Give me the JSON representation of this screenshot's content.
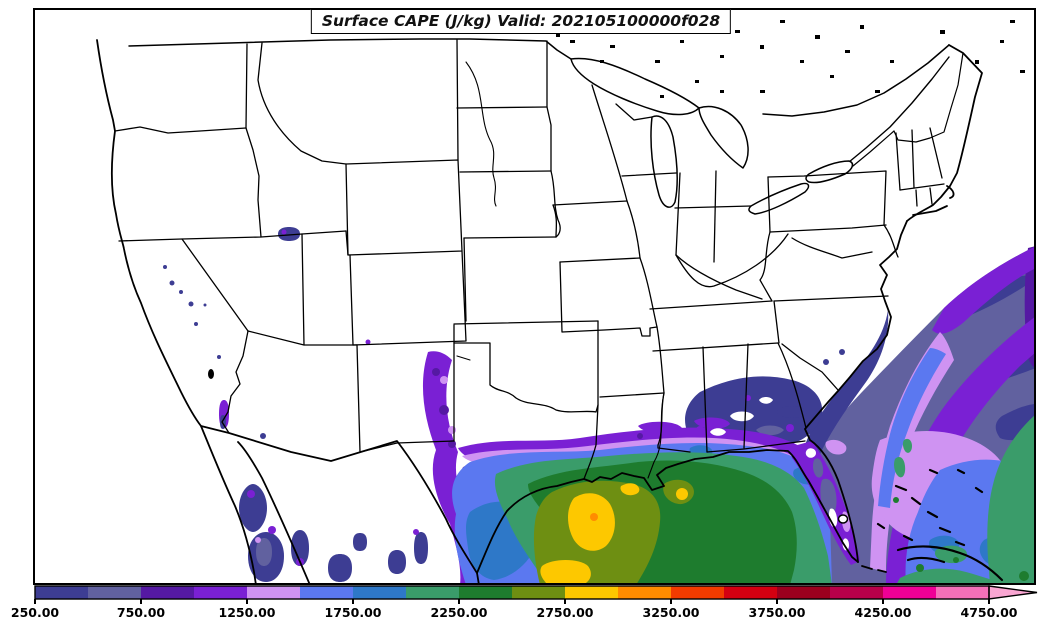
{
  "title": {
    "text": "Surface CAPE (J/kg) Valid: 202105100000f028"
  },
  "colorbar": {
    "min": 250,
    "max": 4750,
    "step": 250,
    "tick_labels": [
      "250.00",
      "750.00",
      "1250.00",
      "1750.00",
      "2250.00",
      "2750.00",
      "3250.00",
      "3750.00",
      "4250.00",
      "4750.00"
    ],
    "segment_colors": [
      "#3d3d93",
      "#61619f",
      "#5519a3",
      "#7a20d4",
      "#cf93f2",
      "#5b78f0",
      "#2e78c8",
      "#3a9c6a",
      "#1e7c2e",
      "#6e8f12",
      "#fdc800",
      "#ff8c00",
      "#f23b00",
      "#d40011",
      "#9b001e",
      "#b8004a",
      "#ef0096",
      "#f470b8"
    ],
    "arrow_color": "#f9a6d2",
    "outline_color": "#000000"
  },
  "chart_data": {
    "type": "heatmap",
    "title": "Surface CAPE (J/kg) Valid: 202105100000f028",
    "variable": "Surface CAPE",
    "units": "J/kg",
    "valid_time": "202105100000f028",
    "region": "Contiguous United States with state borders",
    "contour_levels": [
      250,
      500,
      750,
      1000,
      1250,
      1500,
      1750,
      2000,
      2250,
      2500,
      2750,
      3000,
      3250,
      3500,
      3750,
      4000,
      4250,
      4500,
      4750
    ],
    "palette": [
      "#3d3d93",
      "#61619f",
      "#5519a3",
      "#7a20d4",
      "#cf93f2",
      "#5b78f0",
      "#2e78c8",
      "#3a9c6a",
      "#1e7c2e",
      "#6e8f12",
      "#fdc800",
      "#ff8c00",
      "#f23b00",
      "#d40011",
      "#9b001e",
      "#b8004a",
      "#ef0096",
      "#f470b8"
    ],
    "legend_position": "bottom",
    "features": [
      {
        "area": "western Gulf of Mexico off Texas coast",
        "value_range": [
          2750,
          3250
        ],
        "note": "maximum CAPE cores (gold/orange)"
      },
      {
        "area": "central Gulf of Mexico and Louisiana coast",
        "value_range": [
          2000,
          2750
        ]
      },
      {
        "area": "south Texas / dryline band into Mexico",
        "value_range": [
          250,
          1500
        ]
      },
      {
        "area": "Mississippi, Alabama, Georgia inland",
        "value_range": [
          250,
          1250
        ]
      },
      {
        "area": "western Atlantic off Southeast US coast",
        "value_range": [
          250,
          2250
        ],
        "note": "broad plume with Gulf Stream band of 1250-1750"
      },
      {
        "area": "Florida and Bahamas",
        "value_range": [
          500,
          2000
        ]
      },
      {
        "area": "bottom-right Atlantic / Caribbean corner",
        "value_range": [
          1500,
          2250
        ]
      },
      {
        "area": "California Sierra and Great Basin",
        "value_range": [
          250,
          750
        ],
        "note": "isolated weak patches"
      },
      {
        "area": "northwestern Mexico",
        "value_range": [
          250,
          1250
        ]
      }
    ]
  }
}
